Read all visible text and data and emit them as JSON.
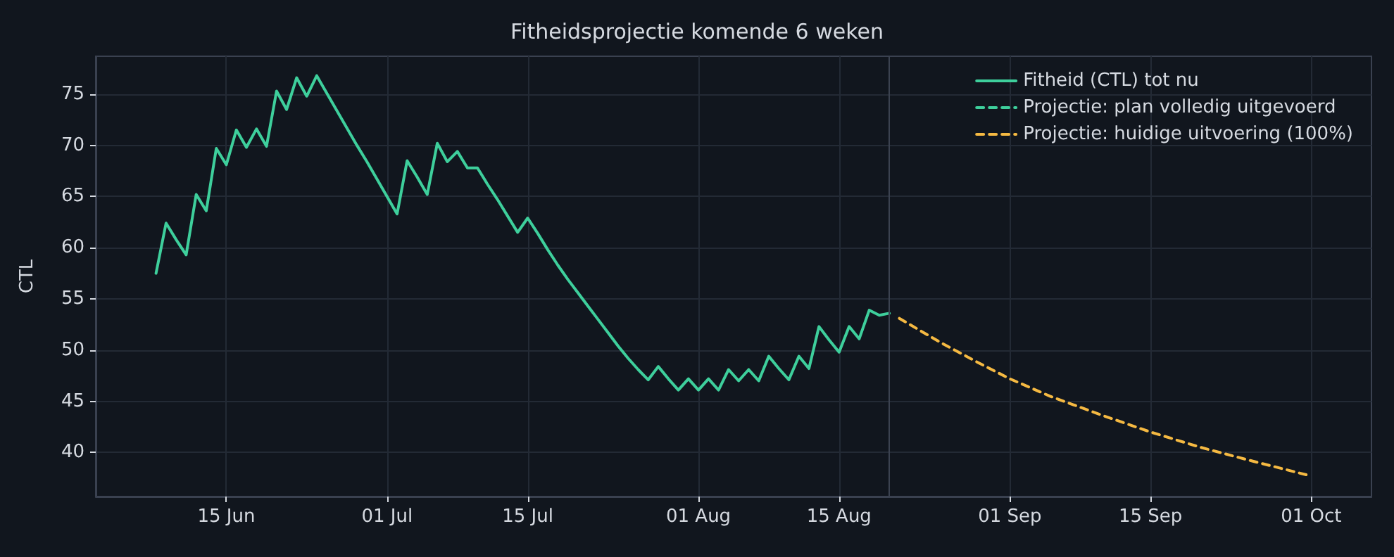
{
  "chart_data": {
    "type": "line",
    "title": "Fitheidsprojectie komende 6 weken",
    "ylabel": "CTL",
    "xlim": [
      "--06-02",
      "--10-07"
    ],
    "xticks": [
      {
        "value": "--06-15",
        "label": "15 Jun"
      },
      {
        "value": "--07-01",
        "label": "01 Jul"
      },
      {
        "value": "--07-15",
        "label": "15 Jul"
      },
      {
        "value": "--08-01",
        "label": "01 Aug"
      },
      {
        "value": "--08-15",
        "label": "15 Aug"
      },
      {
        "value": "--09-01",
        "label": "01 Sep"
      },
      {
        "value": "--09-15",
        "label": "15 Sep"
      },
      {
        "value": "--10-01",
        "label": "01 Oct"
      }
    ],
    "ylim": [
      35.7,
      78.7
    ],
    "yticks": [
      40,
      45,
      50,
      55,
      60,
      65,
      70,
      75
    ],
    "grid": true,
    "legend": "top right",
    "marker": "none",
    "ref_lines": [
      {
        "axis": "x",
        "value": "--08-20",
        "color": "#3b4250"
      }
    ],
    "series": [
      {
        "name": "Fitheid (CTL) tot nu",
        "color": "#3ecf9c",
        "line_style": "solid",
        "x": [
          "--06-08",
          "--06-09",
          "--06-10",
          "--06-11",
          "--06-12",
          "--06-13",
          "--06-14",
          "--06-15",
          "--06-16",
          "--06-17",
          "--06-18",
          "--06-19",
          "--06-20",
          "--06-21",
          "--06-22",
          "--06-23",
          "--06-24",
          "--06-25",
          "--06-26",
          "--06-27",
          "--06-28",
          "--06-29",
          "--06-30",
          "--07-01",
          "--07-02",
          "--07-03",
          "--07-04",
          "--07-05",
          "--07-06",
          "--07-07",
          "--07-08",
          "--07-09",
          "--07-10",
          "--07-11",
          "--07-12",
          "--07-13",
          "--07-14",
          "--07-15",
          "--07-16",
          "--07-17",
          "--07-18",
          "--07-19",
          "--07-20",
          "--07-21",
          "--07-22",
          "--07-23",
          "--07-24",
          "--07-25",
          "--07-26",
          "--07-27",
          "--07-28",
          "--07-29",
          "--07-30",
          "--07-31",
          "--08-01",
          "--08-02",
          "--08-03",
          "--08-04",
          "--08-05",
          "--08-06",
          "--08-07",
          "--08-08",
          "--08-09",
          "--08-10",
          "--08-11",
          "--08-12",
          "--08-13",
          "--08-14",
          "--08-15",
          "--08-16",
          "--08-17",
          "--08-18",
          "--08-19",
          "--08-20"
        ],
        "values": [
          57.5,
          62.4,
          60.8,
          59.3,
          65.2,
          63.6,
          69.7,
          68.1,
          71.5,
          69.8,
          71.6,
          69.9,
          75.3,
          73.5,
          76.6,
          74.8,
          76.8,
          75.1,
          73.4,
          71.7,
          70.0,
          68.4,
          66.7,
          65.0,
          63.3,
          68.5,
          66.9,
          65.2,
          70.2,
          68.4,
          69.4,
          67.8,
          67.8,
          66.2,
          64.7,
          63.1,
          61.5,
          62.9,
          61.4,
          59.8,
          58.3,
          56.9,
          55.6,
          54.3,
          53.0,
          51.7,
          50.4,
          49.2,
          48.1,
          47.1,
          48.4,
          47.2,
          46.1,
          47.2,
          46.1,
          47.2,
          46.1,
          48.1,
          47.0,
          48.1,
          47.0,
          49.4,
          48.2,
          47.1,
          49.4,
          48.2,
          52.3,
          51.0,
          49.8,
          52.3,
          51.1,
          53.9,
          53.4,
          53.6
        ]
      },
      {
        "name": "Projectie: plan volledig uitgevoerd",
        "color": "#3ecf9c",
        "line_style": "dashed"
      },
      {
        "name": "Projectie: huidige uitvoering (100%)",
        "color": "#f5b942",
        "line_style": "dashed",
        "x": [
          "--08-21",
          "--08-25",
          "--08-29",
          "--09-01",
          "--09-05",
          "--09-10",
          "--09-15",
          "--09-20",
          "--09-25",
          "--10-01"
        ],
        "values": [
          53.1,
          50.8,
          48.7,
          47.2,
          45.5,
          43.7,
          42.0,
          40.5,
          39.2,
          37.7
        ]
      }
    ]
  }
}
